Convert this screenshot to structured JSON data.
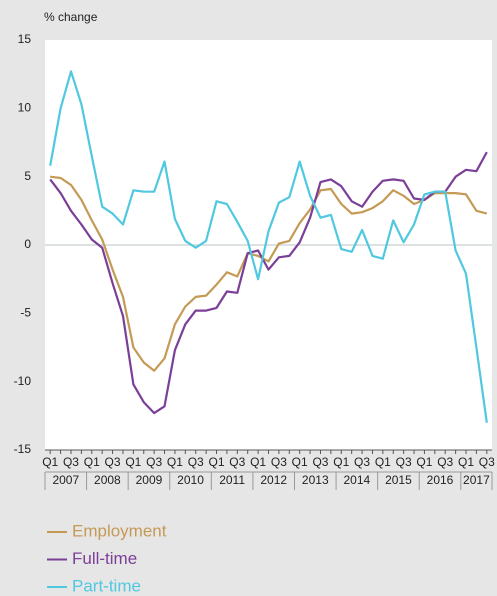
{
  "chart_data": {
    "type": "line",
    "y_axis_label": "% change",
    "categories": [
      "Q1",
      null,
      "Q3",
      null,
      "Q1",
      null,
      "Q3",
      null,
      "Q1",
      null,
      "Q3",
      null,
      "Q1",
      null,
      "Q3",
      null,
      "Q1",
      null,
      "Q3",
      null,
      "Q1",
      null,
      "Q3",
      null,
      "Q1",
      null,
      "Q3",
      null,
      "Q1",
      null,
      "Q3",
      null,
      "Q1",
      null,
      "Q3",
      null,
      "Q1",
      null,
      "Q3",
      null,
      "Q1",
      null,
      "Q3"
    ],
    "years": [
      "2007",
      "2008",
      "2009",
      "2010",
      "2011",
      "2012",
      "2013",
      "2014",
      "2015",
      "2016",
      "2017"
    ],
    "series": [
      {
        "name": "Employment",
        "color": "#c49a55",
        "values": [
          5.0,
          4.9,
          4.4,
          3.3,
          1.8,
          0.4,
          -1.8,
          -3.8,
          -7.5,
          -8.6,
          -9.2,
          -8.3,
          -5.8,
          -4.5,
          -3.8,
          -3.7,
          -2.9,
          -2.0,
          -2.3,
          -0.6,
          -0.8,
          -1.2,
          0.1,
          0.3,
          1.6,
          2.6,
          4.0,
          4.1,
          3.0,
          2.3,
          2.4,
          2.7,
          3.2,
          4.0,
          3.6,
          3.0,
          3.3,
          3.8,
          3.8,
          3.8,
          3.7,
          2.5,
          2.3
        ]
      },
      {
        "name": "Full-time",
        "color": "#7b3f98",
        "values": [
          4.8,
          3.8,
          2.5,
          1.5,
          0.4,
          -0.2,
          -2.8,
          -5.2,
          -10.2,
          -11.5,
          -12.3,
          -11.8,
          -7.7,
          -5.8,
          -4.8,
          -4.8,
          -4.6,
          -3.4,
          -3.5,
          -0.6,
          -0.4,
          -1.8,
          -0.9,
          -0.8,
          0.2,
          2.0,
          4.6,
          4.8,
          4.3,
          3.2,
          2.8,
          3.9,
          4.7,
          4.8,
          4.7,
          3.4,
          3.3,
          3.9,
          3.9,
          5.0,
          5.5,
          5.4,
          6.8
        ]
      },
      {
        "name": "Part-time",
        "color": "#4fc8e0",
        "values": [
          5.8,
          10.0,
          12.7,
          10.3,
          6.5,
          2.8,
          2.3,
          1.5,
          4.0,
          3.9,
          3.9,
          6.1,
          1.9,
          0.3,
          -0.2,
          0.3,
          3.2,
          3.0,
          1.7,
          0.3,
          -2.5,
          1.0,
          3.1,
          3.5,
          6.1,
          3.6,
          2.0,
          2.2,
          -0.3,
          -0.5,
          1.1,
          -0.8,
          -1.0,
          1.8,
          0.2,
          1.5,
          3.7,
          3.9,
          3.9,
          -0.4,
          -2.1,
          -7.5,
          -13.0
        ]
      }
    ],
    "ylim": [
      -15,
      15
    ],
    "yticks": [
      -15,
      -10,
      -5,
      0,
      5,
      10,
      15
    ]
  }
}
